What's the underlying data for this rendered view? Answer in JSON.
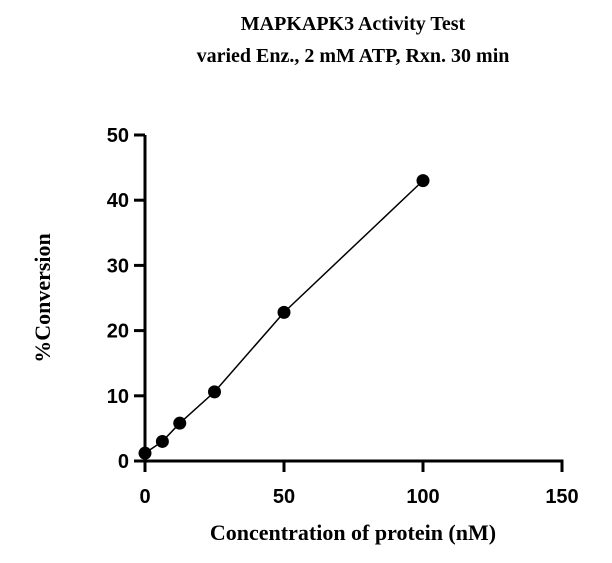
{
  "chart_data": {
    "type": "line",
    "title": "MAPKAPK3 Activity Test",
    "subtitle": "varied Enz., 2 mM ATP, Rxn. 30 min",
    "xlabel": "Concentration of protein (nM)",
    "ylabel": "%Conversion",
    "xlim": [
      0,
      150
    ],
    "ylim": [
      0,
      50
    ],
    "xticks": [
      0,
      50,
      100,
      150
    ],
    "yticks": [
      0,
      10,
      20,
      30,
      40,
      50
    ],
    "grid": false,
    "series": [
      {
        "x": [
          0,
          6.25,
          12.5,
          25,
          50,
          100
        ],
        "y": [
          1.2,
          3.0,
          5.8,
          10.6,
          22.8,
          43.0
        ],
        "color": "#000000",
        "marker": "circle"
      }
    ]
  }
}
